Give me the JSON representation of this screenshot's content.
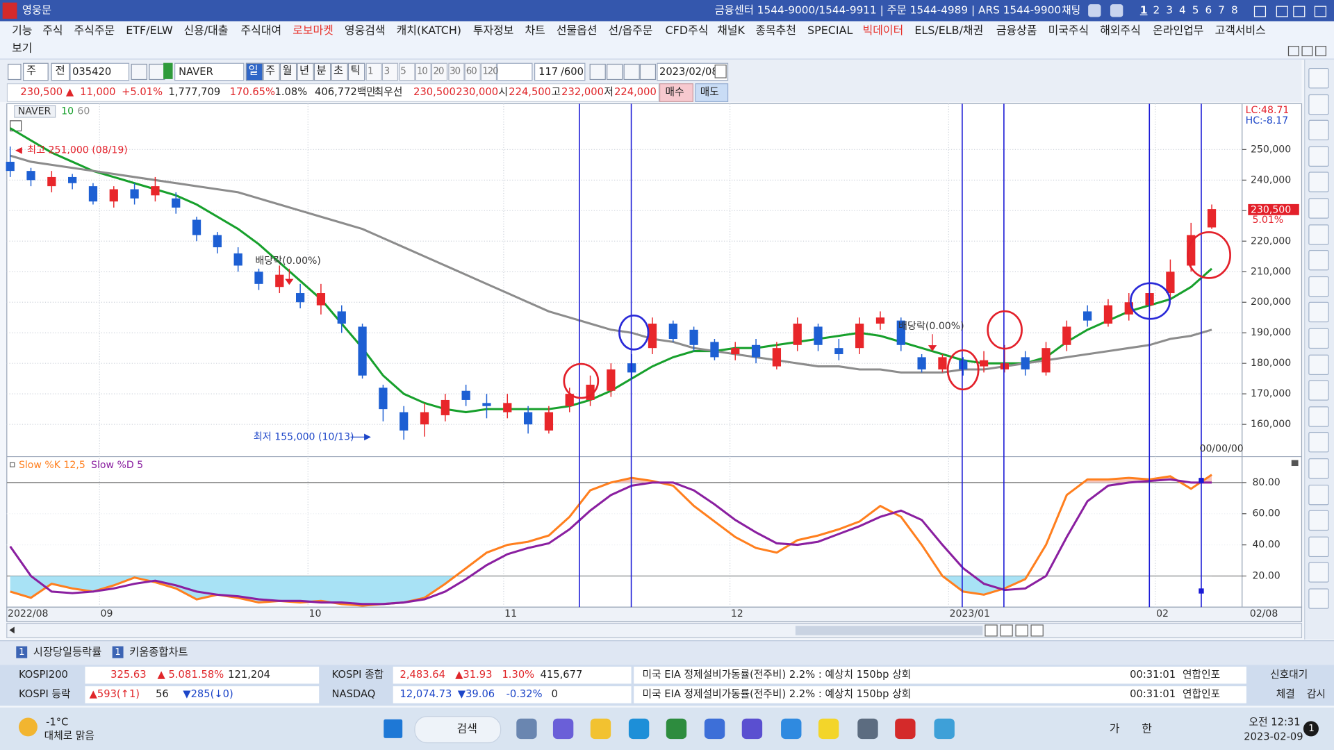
{
  "title_bar": {
    "app": "영웅문",
    "info": "금융센터 1544-9000/1544-9911 | 주문 1544-4989 | ARS 1544-9900",
    "chat": "채팅",
    "screens": [
      "1",
      "2",
      "3",
      "4",
      "5",
      "6",
      "7",
      "8"
    ]
  },
  "menu": [
    {
      "label": "기능"
    },
    {
      "label": "주식"
    },
    {
      "label": "주식주문"
    },
    {
      "label": "ETF/ELW"
    },
    {
      "label": "신용/대출"
    },
    {
      "label": "주식대여"
    },
    {
      "label": "로보마켓",
      "color": "#e8322b"
    },
    {
      "label": "영웅검색"
    },
    {
      "label": "캐치(KATCH)"
    },
    {
      "label": "투자정보"
    },
    {
      "label": "차트"
    },
    {
      "label": "선물옵션"
    },
    {
      "label": "선/옵주문"
    },
    {
      "label": "CFD주식"
    },
    {
      "label": "채널K"
    },
    {
      "label": "종목추천"
    },
    {
      "label": "SPECIAL"
    },
    {
      "label": "빅데이터",
      "color": "#e8322b"
    },
    {
      "label": "ELS/ELB/채권"
    },
    {
      "label": "금융상품"
    },
    {
      "label": "미국주식"
    },
    {
      "label": "해외주식"
    },
    {
      "label": "온라인업무"
    },
    {
      "label": "고객서비스"
    }
  ],
  "menu_row2": "보기",
  "toolbar": {
    "market": "주",
    "all": "전",
    "code": "035420",
    "name": "NAVER",
    "periods": [
      "일",
      "주",
      "월",
      "년",
      "분",
      "초",
      "틱"
    ],
    "intervals": [
      "1",
      "3",
      "5",
      "10",
      "20",
      "30",
      "60",
      "120"
    ],
    "count": "117",
    "max": "/600",
    "date": "2023/02/08"
  },
  "quote": {
    "price": "230,500 ▲",
    "change": "11,000",
    "rate": "+5.01%",
    "volume": "1,777,709",
    "volume_ratio": "170.65%",
    "turnover": "1.08%",
    "amount": "406,772백만",
    "best_label": "최우선",
    "best_ask": "230,500",
    "best_bid": "230,000",
    "open_label": "시",
    "open": "224,500",
    "high_label": "고",
    "high": "232,000",
    "low_label": "저",
    "low": "224,000",
    "buy": "매수",
    "sell": "매도"
  },
  "chart_data": {
    "type": "candlestick",
    "title": "NAVER",
    "open": [
      246000,
      243000,
      238000,
      241000,
      238000,
      233000,
      237000,
      235000,
      234000,
      227000,
      222000,
      216000,
      210000,
      205000,
      203000,
      199000,
      197000,
      192000,
      172000,
      164000,
      160000,
      163000,
      171000,
      167000,
      164000,
      164000,
      158000,
      166000,
      168000,
      171000,
      180000,
      185000,
      193000,
      191000,
      187000,
      183000,
      186000,
      179000,
      186000,
      192000,
      185000,
      185000,
      193000,
      194000,
      182000,
      178000,
      181000,
      179000,
      178000,
      182000,
      177000,
      186000,
      197000,
      193000,
      196000,
      199000,
      203000,
      212000,
      224500
    ],
    "high": [
      251000,
      244000,
      243000,
      242000,
      239000,
      238000,
      239000,
      241000,
      236000,
      228000,
      223000,
      218000,
      211000,
      212000,
      206000,
      206000,
      199000,
      193000,
      173000,
      166000,
      167000,
      170000,
      173000,
      170000,
      170000,
      166000,
      166000,
      172000,
      176000,
      180000,
      183000,
      195000,
      194000,
      192000,
      188000,
      187000,
      188000,
      187000,
      195000,
      193000,
      188000,
      195000,
      197000,
      195000,
      183000,
      183000,
      182000,
      184000,
      186000,
      184000,
      187000,
      194000,
      199000,
      201000,
      203000,
      206000,
      214000,
      226000,
      232000
    ],
    "low": [
      241000,
      238000,
      236000,
      237000,
      232000,
      231000,
      232000,
      233000,
      229000,
      220000,
      216000,
      210000,
      204000,
      203000,
      198000,
      196000,
      190000,
      175000,
      161000,
      155000,
      156000,
      161000,
      166000,
      162000,
      162000,
      157000,
      157000,
      164000,
      166000,
      169000,
      175000,
      183000,
      187000,
      184000,
      181000,
      181000,
      180000,
      178000,
      184000,
      184000,
      181000,
      183000,
      191000,
      184000,
      177000,
      177000,
      176000,
      177000,
      177000,
      176000,
      176000,
      184000,
      192000,
      192000,
      194000,
      197000,
      201000,
      210000,
      224000
    ],
    "close": [
      243000,
      240000,
      241000,
      239000,
      233000,
      237000,
      234000,
      238000,
      231000,
      222000,
      218000,
      212000,
      206000,
      209000,
      200000,
      203000,
      193000,
      176000,
      165000,
      158000,
      164000,
      168000,
      168000,
      166000,
      167000,
      160000,
      164000,
      170000,
      173000,
      178000,
      177000,
      193000,
      188000,
      186000,
      182000,
      185000,
      182000,
      185000,
      193000,
      186000,
      183000,
      193000,
      195000,
      186000,
      178000,
      182000,
      178000,
      181000,
      180000,
      178000,
      185000,
      192000,
      194000,
      199000,
      200000,
      203000,
      210000,
      222000,
      230500
    ],
    "ma": [
      {
        "name": "10",
        "color": "#17a02c",
        "values": [
          257000,
          253000,
          249000,
          246000,
          243000,
          241000,
          239000,
          237000,
          235000,
          232000,
          228000,
          224000,
          219000,
          213000,
          207000,
          201000,
          193000,
          185000,
          176000,
          170000,
          167000,
          165000,
          164000,
          165000,
          165000,
          165000,
          165000,
          166000,
          168000,
          171000,
          175000,
          179000,
          182000,
          184000,
          184000,
          185000,
          185000,
          186000,
          187000,
          188000,
          189000,
          190000,
          189000,
          187000,
          185000,
          183000,
          181000,
          180000,
          180000,
          180000,
          182000,
          187000,
          191000,
          194000,
          197000,
          199000,
          201000,
          205000,
          211000
        ]
      },
      {
        "name": "60",
        "color": "#8c8c8c",
        "values": [
          248000,
          246000,
          245000,
          244000,
          243000,
          242000,
          241000,
          240000,
          239000,
          238000,
          237000,
          236000,
          234000,
          232000,
          230000,
          228000,
          226000,
          224000,
          221000,
          218000,
          215000,
          212000,
          209000,
          206000,
          203000,
          200000,
          197000,
          195000,
          193000,
          191000,
          190000,
          188000,
          187000,
          185000,
          184000,
          183000,
          182000,
          181000,
          180000,
          179000,
          179000,
          178000,
          178000,
          177000,
          177000,
          177000,
          178000,
          178000,
          179000,
          180000,
          181000,
          182000,
          183000,
          184000,
          185000,
          186000,
          188000,
          189000,
          191000
        ]
      }
    ],
    "up_color": "#e8262a",
    "down_color": "#1d5fd3",
    "ylim": [
      150000,
      265000
    ],
    "yticks": [
      {
        "value": 160000,
        "label": "160,000"
      },
      {
        "value": 170000,
        "label": "170,000"
      },
      {
        "value": 180000,
        "label": "180,000"
      },
      {
        "value": 190000,
        "label": "190,000"
      },
      {
        "value": 200000,
        "label": "200,000"
      },
      {
        "value": 210000,
        "label": "210,000"
      },
      {
        "value": 220000,
        "label": "220,000"
      },
      {
        "value": 230000,
        "label": "230,000"
      },
      {
        "value": 240000,
        "label": "240,000"
      },
      {
        "value": 250000,
        "label": "250,000"
      }
    ],
    "grid": true,
    "x_labels": [
      "2022/08",
      "09",
      "10",
      "11",
      "12",
      "2023/01",
      "02",
      "02/08"
    ],
    "annotations": {
      "high": "최고 251,000 (08/19)",
      "low": "최저 155,000 (10/13)",
      "dividend1": "배당락(0.00%)",
      "dividend2": "배당락(0.00%)",
      "date": "00/00/00",
      "lc": "LC:48.71",
      "hc": "HC:-8.17",
      "last_price": "230,500",
      "last_rate": "5.01%"
    },
    "stochastic": {
      "type": "line",
      "series": [
        {
          "name": "Slow %K 12,5",
          "color": "#ff7f1e",
          "values": [
            10,
            6,
            15,
            12,
            10,
            14,
            19,
            16,
            12,
            5,
            8,
            6,
            3,
            4,
            3,
            4,
            2,
            1,
            2,
            3,
            6,
            15,
            25,
            35,
            40,
            42,
            46,
            58,
            75,
            80,
            83,
            81,
            78,
            65,
            55,
            45,
            38,
            35,
            43,
            46,
            50,
            55,
            65,
            58,
            40,
            20,
            10,
            8,
            12,
            18,
            40,
            72,
            82,
            82,
            83,
            82,
            84,
            76,
            85
          ]
        },
        {
          "name": "Slow %D 5",
          "color": "#8a1fa0",
          "values": [
            39,
            20,
            10,
            9,
            10,
            12,
            15,
            17,
            14,
            10,
            8,
            7,
            5,
            4,
            4,
            3,
            3,
            2,
            2,
            3,
            5,
            10,
            18,
            27,
            34,
            38,
            41,
            50,
            62,
            72,
            78,
            80,
            80,
            75,
            66,
            56,
            48,
            41,
            40,
            42,
            47,
            52,
            58,
            62,
            56,
            40,
            25,
            15,
            11,
            12,
            20,
            45,
            68,
            78,
            80,
            81,
            82,
            80,
            80
          ]
        }
      ],
      "ylim": [
        0,
        95
      ],
      "levels": [
        20,
        80
      ],
      "yticks": [
        {
          "value": 20,
          "label": "20.00"
        },
        {
          "value": 40,
          "label": "40.00"
        },
        {
          "value": 60,
          "label": "60.00"
        },
        {
          "value": 80,
          "label": "80.00"
        }
      ]
    }
  },
  "tabs": [
    {
      "badge": "1",
      "label": "시장당일등락률"
    },
    {
      "badge": "1",
      "label": "키움종합차트"
    }
  ],
  "ticker": {
    "rows": [
      [
        "KOSPI200",
        "325.63",
        "▲ 5.08",
        "1.58%",
        "121,204",
        "KOSPI 종합",
        "2,483.64",
        "▲31.93",
        "1.30%",
        "415,677",
        "미국 EIA 정제설비가동률(전주비) 2.2% : 예상치 150bp 상회",
        "00:31:01",
        "연합인포",
        "신호대기"
      ],
      [
        "KOSPI 등락",
        "▲593(↑1)",
        "56",
        "▼285(↓0)",
        "NASDAQ",
        "12,074.73",
        "▼39.06",
        "-0.32%",
        "0",
        "미국 EIA 정제설비가동률(전주비) 2.2% : 예상치 150bp 상회",
        "00:31:01",
        "연합인포",
        "체결",
        "감시"
      ]
    ]
  },
  "taskbar": {
    "temp": "-1°C",
    "weather": "대체로 맑음",
    "search": "검색",
    "ime1": "가",
    "ime2": "한",
    "time": "오전 12:31",
    "date": "2023-02-09",
    "notifications": "1"
  }
}
